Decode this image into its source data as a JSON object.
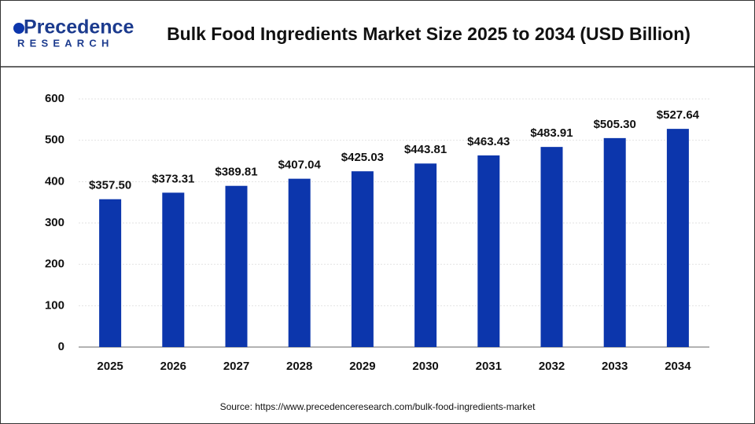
{
  "logo": {
    "name": "Precedence",
    "sub": "RESEARCH"
  },
  "chart_data": {
    "type": "bar",
    "title": "Bulk Food Ingredients Market Size 2025 to 2034 (USD Billion)",
    "categories": [
      "2025",
      "2026",
      "2027",
      "2028",
      "2029",
      "2030",
      "2031",
      "2032",
      "2033",
      "2034"
    ],
    "values": [
      357.5,
      373.31,
      389.81,
      407.04,
      425.03,
      443.81,
      463.43,
      483.91,
      505.3,
      527.64
    ],
    "value_labels": [
      "$357.50",
      "$373.31",
      "$389.81",
      "$407.04",
      "$425.03",
      "$443.81",
      "$463.43",
      "$483.91",
      "$505.30",
      "$527.64"
    ],
    "color": "#0c36ac",
    "ylim": [
      0,
      600
    ],
    "yticks": [
      0,
      100,
      200,
      300,
      400,
      500,
      600
    ],
    "grid": true,
    "source": "Source: https://www.precedenceresearch.com/bulk-food-ingredients-market"
  }
}
